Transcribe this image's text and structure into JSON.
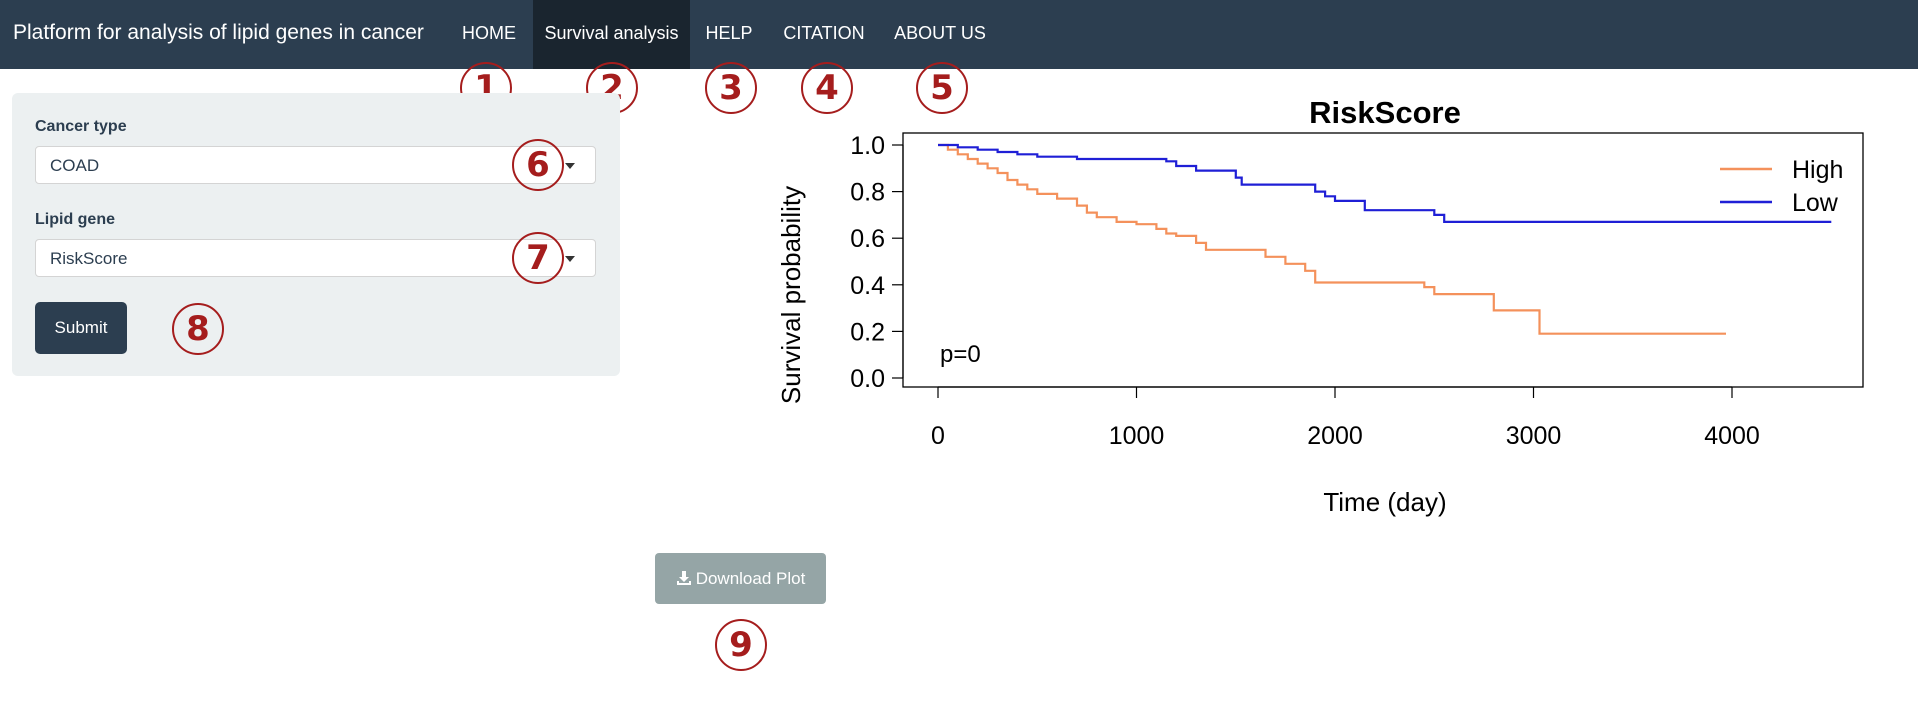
{
  "navbar": {
    "brand": "Platform for analysis of lipid genes in cancer",
    "items": [
      {
        "label": "HOME",
        "active": false
      },
      {
        "label": "Survival analysis",
        "active": true
      },
      {
        "label": "HELP",
        "active": false
      },
      {
        "label": "CITATION",
        "active": false
      },
      {
        "label": "ABOUT US",
        "active": false
      }
    ]
  },
  "badges": [
    "1",
    "2",
    "3",
    "4",
    "5",
    "6",
    "7",
    "8",
    "9"
  ],
  "form": {
    "cancer_type_label": "Cancer type",
    "cancer_type_value": "COAD",
    "lipid_gene_label": "Lipid gene",
    "lipid_gene_value": "RiskScore",
    "submit_label": "Submit"
  },
  "download": {
    "label": "Download Plot",
    "icon": "download-icon"
  },
  "colors": {
    "navbar": "#2c3e50",
    "high": "#f4915b",
    "low": "#1f1fd6",
    "badge": "#a51d1d"
  },
  "chart_data": {
    "type": "line",
    "title": "RiskScore",
    "xlabel": "Time (day)",
    "ylabel": "Survival probability",
    "xlim": [
      0,
      4600
    ],
    "ylim": [
      0,
      1
    ],
    "xticks": [
      0,
      1000,
      2000,
      3000,
      4000
    ],
    "yticks": [
      "0.0",
      "0.2",
      "0.4",
      "0.6",
      "0.8",
      "1.0"
    ],
    "legend_position": "top-right",
    "annotation": "p=0",
    "series": [
      {
        "name": "High",
        "color": "#f4915b",
        "points": [
          [
            0,
            1.0
          ],
          [
            50,
            0.98
          ],
          [
            100,
            0.96
          ],
          [
            150,
            0.94
          ],
          [
            200,
            0.92
          ],
          [
            250,
            0.9
          ],
          [
            300,
            0.88
          ],
          [
            350,
            0.85
          ],
          [
            400,
            0.83
          ],
          [
            450,
            0.81
          ],
          [
            500,
            0.79
          ],
          [
            600,
            0.77
          ],
          [
            700,
            0.74
          ],
          [
            750,
            0.71
          ],
          [
            800,
            0.69
          ],
          [
            900,
            0.67
          ],
          [
            1000,
            0.66
          ],
          [
            1100,
            0.64
          ],
          [
            1150,
            0.62
          ],
          [
            1200,
            0.61
          ],
          [
            1300,
            0.58
          ],
          [
            1350,
            0.55
          ],
          [
            1650,
            0.52
          ],
          [
            1750,
            0.49
          ],
          [
            1850,
            0.46
          ],
          [
            1900,
            0.41
          ],
          [
            2450,
            0.39
          ],
          [
            2500,
            0.36
          ],
          [
            2800,
            0.29
          ],
          [
            3030,
            0.19
          ],
          [
            3970,
            0.19
          ]
        ]
      },
      {
        "name": "Low",
        "color": "#1f1fd6",
        "points": [
          [
            0,
            1.0
          ],
          [
            100,
            0.99
          ],
          [
            200,
            0.98
          ],
          [
            300,
            0.97
          ],
          [
            400,
            0.96
          ],
          [
            500,
            0.95
          ],
          [
            700,
            0.94
          ],
          [
            1150,
            0.93
          ],
          [
            1200,
            0.91
          ],
          [
            1300,
            0.89
          ],
          [
            1500,
            0.86
          ],
          [
            1530,
            0.83
          ],
          [
            1900,
            0.8
          ],
          [
            1950,
            0.78
          ],
          [
            2000,
            0.76
          ],
          [
            2150,
            0.72
          ],
          [
            2500,
            0.7
          ],
          [
            2550,
            0.67
          ],
          [
            4500,
            0.67
          ]
        ]
      }
    ]
  }
}
